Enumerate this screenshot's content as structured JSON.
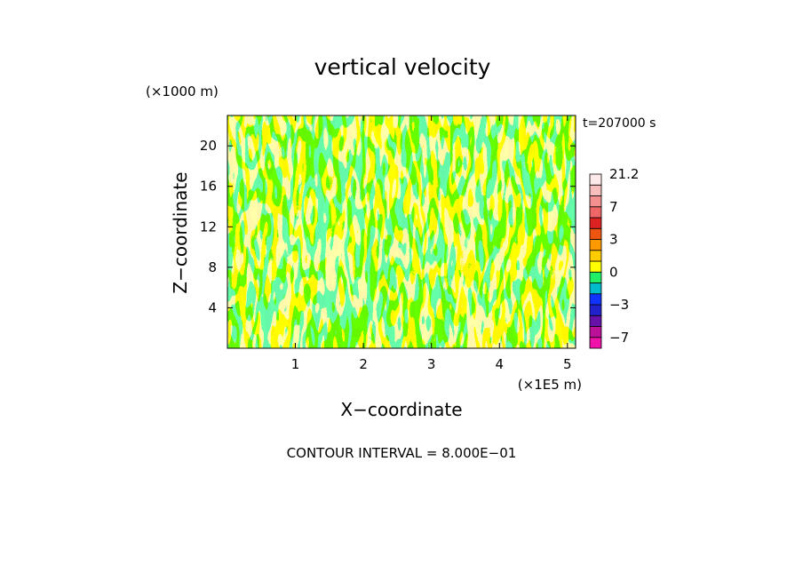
{
  "chart_data": {
    "type": "heatmap",
    "title": "vertical velocity",
    "xlabel": "X−coordinate",
    "ylabel": "Z−coordinate",
    "x_unit_label": "(×1E5 m)",
    "y_unit_label": "(×1000 m)",
    "time_label": "t=207000 s",
    "footer": "CONTOUR INTERVAL = 8.000E−01",
    "xlim": [
      0,
      5.12
    ],
    "ylim": [
      0,
      23
    ],
    "x_ticks": [
      1,
      2,
      3,
      4,
      5
    ],
    "y_ticks": [
      4,
      8,
      12,
      16,
      20
    ],
    "field_note_colors": {
      "negative_small": "#22ee66",
      "positive_small": "#ffff00"
    },
    "colorbar": {
      "tick_labels": [
        "21.2",
        "7",
        "3",
        "0",
        "−3",
        "−7"
      ],
      "tick_values": [
        21.2,
        7,
        3,
        0,
        -3,
        -7
      ],
      "levels": [
        {
          "lo": -10,
          "hi": -7,
          "color": "#ee11aa"
        },
        {
          "lo": -7,
          "hi": -5,
          "color": "#bb1199"
        },
        {
          "lo": -5,
          "hi": -4,
          "color": "#6611aa"
        },
        {
          "lo": -4,
          "hi": -3,
          "color": "#2222cc"
        },
        {
          "lo": -3,
          "hi": -2,
          "color": "#1133ff"
        },
        {
          "lo": -2,
          "hi": -1,
          "color": "#00bbcc"
        },
        {
          "lo": -1,
          "hi": 0,
          "color": "#22ee66"
        },
        {
          "lo": 0,
          "hi": 1,
          "color": "#ffff00"
        },
        {
          "lo": 1,
          "hi": 2,
          "color": "#ffcc00"
        },
        {
          "lo": 2,
          "hi": 3,
          "color": "#ff9900"
        },
        {
          "lo": 3,
          "hi": 4,
          "color": "#ee5511"
        },
        {
          "lo": 4,
          "hi": 5,
          "color": "#dd2222"
        },
        {
          "lo": 5,
          "hi": 7,
          "color": "#ee6666"
        },
        {
          "lo": 7,
          "hi": 10,
          "color": "#f49090"
        },
        {
          "lo": 10,
          "hi": 15,
          "color": "#f8bdbd"
        },
        {
          "lo": 15,
          "hi": 21.2,
          "color": "#fde9e9"
        }
      ]
    }
  }
}
